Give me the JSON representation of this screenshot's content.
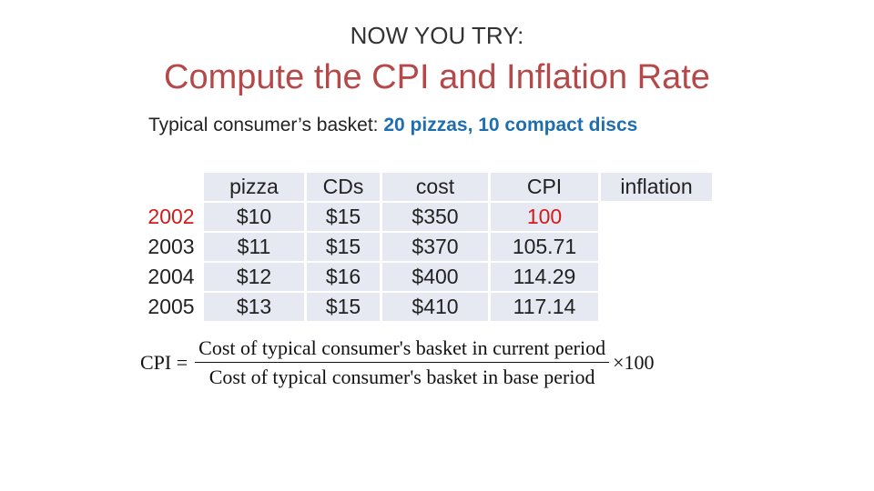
{
  "kicker": "NOW YOU TRY:",
  "title": "Compute the CPI and Inflation Rate",
  "basket": {
    "label": "Typical consumer’s basket:",
    "items": "20 pizzas, 10 compact discs"
  },
  "table": {
    "headers": [
      "pizza",
      "CDs",
      "cost",
      "CPI",
      "inflation"
    ],
    "rows": [
      {
        "year": "2002",
        "pizza": "$10",
        "cds": "$15",
        "cost": "$350",
        "cpi": "100",
        "inflation": ""
      },
      {
        "year": "2003",
        "pizza": "$11",
        "cds": "$15",
        "cost": "$370",
        "cpi": "105.71",
        "inflation": ""
      },
      {
        "year": "2004",
        "pizza": "$12",
        "cds": "$16",
        "cost": "$400",
        "cpi": "114.29",
        "inflation": ""
      },
      {
        "year": "2005",
        "pizza": "$13",
        "cds": "$15",
        "cost": "$410",
        "cpi": "117.14",
        "inflation": ""
      }
    ]
  },
  "formula": {
    "lhs": "CPI =",
    "numerator": "Cost of typical consumer's basket in current period",
    "denominator": "Cost of typical consumer's basket in base period",
    "rhs": "×100"
  },
  "colors": {
    "title": "#b5494a",
    "highlight": "#1f6fb0",
    "base_year": "#d11a1a",
    "cell_bg": "#e6e9f2"
  }
}
